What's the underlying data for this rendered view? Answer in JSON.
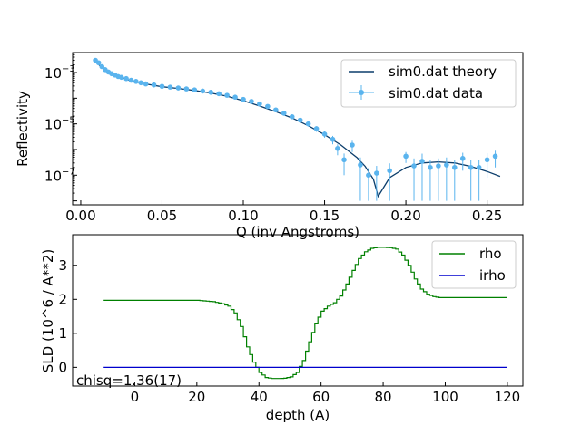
{
  "chart_data": [
    {
      "type": "line",
      "panel": "reflectivity",
      "xlabel": "Q (inv Angstroms)",
      "ylabel": "Reflectivity",
      "yscale": "log",
      "xlim": [
        -0.005,
        0.272
      ],
      "ylim": [
        7e-09,
        0.006
      ],
      "xticks": [
        0.0,
        0.05,
        0.1,
        0.15,
        0.2,
        0.25
      ],
      "xtick_labels": [
        "0.00",
        "0.05",
        "0.10",
        "0.15",
        "0.20",
        "0.25"
      ],
      "yticks": [
        1e-07,
        1e-05,
        0.001
      ],
      "ytick_labels": [
        "10",
        "10",
        "10"
      ],
      "ytick_exponents": [
        "−7",
        "−5",
        "−3"
      ],
      "legend_position": "upper-right",
      "series": [
        {
          "name": "sim0.dat theory",
          "color": "#0b3d6b",
          "kind": "line",
          "x": [
            0.008,
            0.012,
            0.016,
            0.02,
            0.025,
            0.03,
            0.035,
            0.04,
            0.05,
            0.06,
            0.07,
            0.08,
            0.09,
            0.1,
            0.11,
            0.12,
            0.13,
            0.14,
            0.15,
            0.16,
            0.17,
            0.175,
            0.18,
            0.183,
            0.19,
            0.2,
            0.21,
            0.22,
            0.23,
            0.24,
            0.25,
            0.258
          ],
          "y": [
            0.003,
            0.0018,
            0.0011,
            0.0008,
            0.00065,
            0.0005,
            0.00042,
            0.00036,
            0.00028,
            0.00024,
            0.0002,
            0.00016,
            0.00012,
            8e-05,
            5e-05,
            3e-05,
            1.7e-05,
            8.5e-06,
            3.8e-06,
            1.5e-06,
            4.8e-07,
            2.2e-07,
            7e-08,
            1.5e-08,
            8e-08,
            2e-07,
            3e-07,
            3.3e-07,
            3e-07,
            2.2e-07,
            1.4e-07,
            9e-08
          ]
        },
        {
          "name": "sim0.dat data",
          "color": "#5ab4ee",
          "kind": "errorbar",
          "x": [
            0.009,
            0.011,
            0.013,
            0.015,
            0.017,
            0.019,
            0.021,
            0.023,
            0.025,
            0.028,
            0.031,
            0.034,
            0.037,
            0.04,
            0.045,
            0.05,
            0.055,
            0.06,
            0.065,
            0.07,
            0.075,
            0.08,
            0.085,
            0.09,
            0.095,
            0.1,
            0.105,
            0.11,
            0.115,
            0.12,
            0.125,
            0.13,
            0.135,
            0.14,
            0.145,
            0.15,
            0.155,
            0.158,
            0.162,
            0.167,
            0.172,
            0.177,
            0.182,
            0.19,
            0.2,
            0.205,
            0.21,
            0.215,
            0.22,
            0.225,
            0.23,
            0.235,
            0.24,
            0.245,
            0.25,
            0.255
          ],
          "y": [
            0.003,
            0.0024,
            0.0017,
            0.0013,
            0.00105,
            0.0009,
            0.0008,
            0.0007,
            0.00065,
            0.00058,
            0.0005,
            0.00045,
            0.0004,
            0.00036,
            0.00033,
            0.00029,
            0.00027,
            0.00025,
            0.00023,
            0.00021,
            0.00019,
            0.00017,
            0.00015,
            0.00013,
            0.00011,
            9e-05,
            7.5e-05,
            6e-05,
            4.8e-05,
            3.5e-05,
            2.6e-05,
            1.9e-05,
            1.4e-05,
            1e-05,
            6.5e-06,
            4e-06,
            2.5e-06,
            1.1e-06,
            4e-07,
            1.5e-06,
            2.5e-07,
            1e-07,
            1.2e-07,
            1.5e-07,
            5.5e-07,
            2.3e-07,
            3.5e-07,
            2e-07,
            2.3e-07,
            2.5e-07,
            2e-07,
            4.5e-07,
            2e-07,
            2e-07,
            4e-07,
            5.5e-07
          ],
          "err_lo": [
            0.0026,
            0.0021,
            0.0015,
            0.00115,
            0.00094,
            0.00081,
            0.00072,
            0.00063,
            0.00059,
            0.00052,
            0.00045,
            0.0004,
            0.00036,
            0.00032,
            0.00029,
            0.00026,
            0.00024,
            0.00022,
            0.0002,
            0.000185,
            0.000165,
            0.000145,
            0.00013,
            0.00011,
            9.5e-05,
            7.8e-05,
            6.4e-05,
            5.1e-05,
            4e-05,
            2.9e-05,
            2.1e-05,
            1.55e-05,
            1.1e-05,
            7.8e-06,
            4.9e-06,
            2.9e-06,
            1.6e-06,
            6e-07,
            1e-07,
            8e-07,
            1e-08,
            1e-08,
            1e-08,
            1e-08,
            3e-07,
            1e-08,
            1e-08,
            1e-08,
            1e-08,
            1e-08,
            1e-08,
            1.5e-07,
            1e-08,
            1e-08,
            8e-08,
            2e-07
          ],
          "err_hi": [
            0.0034,
            0.0027,
            0.0019,
            0.00145,
            0.00116,
            0.00099,
            0.00088,
            0.00077,
            0.00071,
            0.00064,
            0.00055,
            0.0005,
            0.00044,
            0.0004,
            0.00037,
            0.00032,
            0.0003,
            0.00028,
            0.00026,
            0.000235,
            0.000215,
            0.000195,
            0.00017,
            0.00015,
            0.000125,
            0.000102,
            8.6e-05,
            6.9e-05,
            5.6e-05,
            4.1e-05,
            3.1e-05,
            2.25e-05,
            1.7e-05,
            1.22e-05,
            8.1e-06,
            5.1e-06,
            3.4e-06,
            1.6e-06,
            7e-07,
            2.2e-06,
            4.9e-07,
            1.9e-07,
            2.3e-07,
            2.9e-07,
            8e-07,
            4.5e-07,
            6.9e-07,
            3.9e-07,
            4.5e-07,
            4.9e-07,
            3.9e-07,
            7.5e-07,
            3.9e-07,
            3.9e-07,
            7.2e-07,
            9e-07
          ]
        }
      ]
    },
    {
      "type": "line",
      "panel": "sld",
      "xlabel": "depth (A)",
      "ylabel": "SLD (10^6 / A**2)",
      "xlim": [
        -20,
        125
      ],
      "ylim": [
        -0.55,
        3.9
      ],
      "xticks": [
        0,
        20,
        40,
        60,
        80,
        100,
        120
      ],
      "xtick_labels": [
        "0",
        "20",
        "40",
        "60",
        "80",
        "100",
        "120"
      ],
      "yticks": [
        0,
        1,
        2,
        3
      ],
      "ytick_labels": [
        "0",
        "1",
        "2",
        "3"
      ],
      "legend_position": "upper-right",
      "annotation": "chisq=1.36(17)",
      "series": [
        {
          "name": "rho",
          "color": "#008000",
          "x": [
            -10,
            20,
            25,
            28,
            30,
            32,
            34,
            36,
            38,
            40,
            42,
            44,
            46,
            48,
            50,
            52,
            54,
            56,
            58,
            60,
            62,
            64,
            66,
            68,
            70,
            72,
            74,
            76,
            78,
            80,
            82,
            84,
            86,
            88,
            90,
            92,
            94,
            96,
            98,
            100,
            110,
            120
          ],
          "y": [
            1.97,
            1.97,
            1.93,
            1.87,
            1.8,
            1.6,
            1.2,
            0.6,
            0.15,
            -0.15,
            -0.3,
            -0.33,
            -0.33,
            -0.32,
            -0.28,
            -0.15,
            0.2,
            0.75,
            1.3,
            1.65,
            1.8,
            1.9,
            2.1,
            2.45,
            2.85,
            3.2,
            3.4,
            3.5,
            3.53,
            3.53,
            3.52,
            3.48,
            3.3,
            3.0,
            2.6,
            2.3,
            2.15,
            2.08,
            2.05,
            2.05,
            2.05,
            2.05
          ]
        },
        {
          "name": "irho",
          "color": "#0000cd",
          "x": [
            -10,
            120
          ],
          "y": [
            0,
            0
          ]
        }
      ]
    }
  ]
}
